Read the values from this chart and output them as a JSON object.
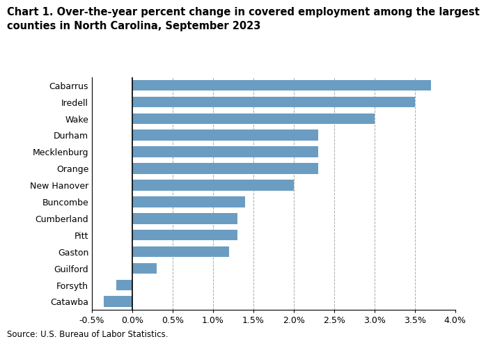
{
  "title_line1": "Chart 1. Over-the-year percent change in covered employment among the largest",
  "title_line2": "counties in North Carolina, September 2023",
  "categories": [
    "Catawba",
    "Forsyth",
    "Guilford",
    "Gaston",
    "Pitt",
    "Cumberland",
    "Buncombe",
    "New Hanover",
    "Orange",
    "Mecklenburg",
    "Durham",
    "Wake",
    "Iredell",
    "Cabarrus"
  ],
  "values": [
    -0.35,
    -0.2,
    0.3,
    1.2,
    1.3,
    1.3,
    1.4,
    2.0,
    2.3,
    2.3,
    2.3,
    3.0,
    3.5,
    3.7
  ],
  "bar_color": "#6B9DC2",
  "xlim": [
    -0.5,
    4.0
  ],
  "xticks": [
    -0.5,
    0.0,
    0.5,
    1.0,
    1.5,
    2.0,
    2.5,
    3.0,
    3.5,
    4.0
  ],
  "source": "Source: U.S. Bureau of Labor Statistics.",
  "title_fontsize": 10.5,
  "tick_fontsize": 9,
  "source_fontsize": 8.5,
  "background_color": "#ffffff"
}
